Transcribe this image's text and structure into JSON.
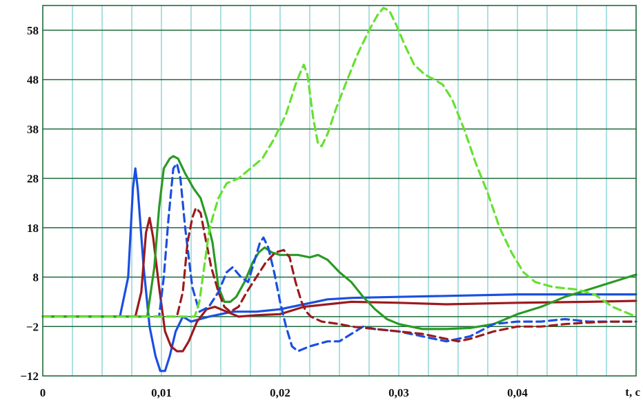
{
  "chart_data": {
    "type": "line",
    "title": "",
    "xlabel": "t, c",
    "xlim": [
      0,
      0.05
    ],
    "ylim": [
      -12,
      63
    ],
    "x_ticks": [
      {
        "v": 0,
        "label": "0"
      },
      {
        "v": 0.01,
        "label": "0,01"
      },
      {
        "v": 0.02,
        "label": "0,02"
      },
      {
        "v": 0.03,
        "label": "0,03"
      },
      {
        "v": 0.04,
        "label": "0,04"
      }
    ],
    "y_ticks": [
      {
        "v": -12,
        "label": "−12"
      },
      {
        "v": -2,
        "label": "−2"
      },
      {
        "v": 8,
        "label": "8"
      },
      {
        "v": 18,
        "label": "18"
      },
      {
        "v": 28,
        "label": "28"
      },
      {
        "v": 38,
        "label": "38"
      },
      {
        "v": 48,
        "label": "48"
      },
      {
        "v": 58,
        "label": "58"
      }
    ],
    "grid": true,
    "series": [
      {
        "color": "#1a4fe0",
        "dash": false,
        "points": [
          [
            0,
            0
          ],
          [
            0.0065,
            0
          ],
          [
            0.0072,
            8
          ],
          [
            0.0076,
            26
          ],
          [
            0.0078,
            30
          ],
          [
            0.008,
            26
          ],
          [
            0.0085,
            10
          ],
          [
            0.009,
            -2
          ],
          [
            0.0095,
            -8
          ],
          [
            0.0099,
            -11
          ],
          [
            0.0103,
            -11
          ],
          [
            0.0107,
            -8
          ],
          [
            0.0112,
            -3
          ],
          [
            0.0118,
            0
          ],
          [
            0.0125,
            -1
          ],
          [
            0.014,
            0
          ],
          [
            0.016,
            1
          ],
          [
            0.018,
            1
          ],
          [
            0.02,
            1.5
          ],
          [
            0.022,
            2.5
          ],
          [
            0.024,
            3.5
          ],
          [
            0.026,
            3.8
          ],
          [
            0.03,
            4
          ],
          [
            0.034,
            4.2
          ],
          [
            0.04,
            4.5
          ],
          [
            0.046,
            4.5
          ],
          [
            0.05,
            4.5
          ]
        ]
      },
      {
        "color": "#9b1a1e",
        "dash": false,
        "points": [
          [
            0,
            0
          ],
          [
            0.0078,
            0
          ],
          [
            0.0083,
            5
          ],
          [
            0.0087,
            17
          ],
          [
            0.009,
            20
          ],
          [
            0.0093,
            16
          ],
          [
            0.0098,
            6
          ],
          [
            0.0103,
            -3
          ],
          [
            0.0108,
            -6
          ],
          [
            0.0113,
            -7
          ],
          [
            0.0118,
            -7
          ],
          [
            0.0123,
            -5
          ],
          [
            0.013,
            -1
          ],
          [
            0.0138,
            1.5
          ],
          [
            0.0145,
            2
          ],
          [
            0.0155,
            1
          ],
          [
            0.0165,
            0
          ],
          [
            0.018,
            0.3
          ],
          [
            0.02,
            0.5
          ],
          [
            0.022,
            2
          ],
          [
            0.024,
            2.5
          ],
          [
            0.026,
            3
          ],
          [
            0.03,
            2.8
          ],
          [
            0.034,
            2.5
          ],
          [
            0.04,
            2.8
          ],
          [
            0.046,
            3
          ],
          [
            0.05,
            3.2
          ]
        ]
      },
      {
        "color": "#2a9a25",
        "dash": false,
        "points": [
          [
            0,
            0
          ],
          [
            0.0088,
            0
          ],
          [
            0.0094,
            10
          ],
          [
            0.0098,
            22
          ],
          [
            0.0102,
            30
          ],
          [
            0.0107,
            32
          ],
          [
            0.011,
            32.5
          ],
          [
            0.0114,
            32
          ],
          [
            0.012,
            29
          ],
          [
            0.0127,
            26
          ],
          [
            0.0133,
            24
          ],
          [
            0.0138,
            20
          ],
          [
            0.0143,
            15
          ],
          [
            0.0148,
            6
          ],
          [
            0.0153,
            3
          ],
          [
            0.0158,
            3
          ],
          [
            0.0163,
            4
          ],
          [
            0.017,
            7
          ],
          [
            0.0177,
            11
          ],
          [
            0.0182,
            13
          ],
          [
            0.0187,
            14
          ],
          [
            0.0193,
            13
          ],
          [
            0.02,
            12.5
          ],
          [
            0.0215,
            12.5
          ],
          [
            0.0225,
            12
          ],
          [
            0.0232,
            12.5
          ],
          [
            0.024,
            11.5
          ],
          [
            0.025,
            9
          ],
          [
            0.026,
            7
          ],
          [
            0.027,
            4
          ],
          [
            0.028,
            1.5
          ],
          [
            0.029,
            -0.5
          ],
          [
            0.03,
            -1.5
          ],
          [
            0.031,
            -2
          ],
          [
            0.032,
            -2.5
          ],
          [
            0.034,
            -2.5
          ],
          [
            0.036,
            -2.3
          ],
          [
            0.038,
            -1.5
          ],
          [
            0.04,
            0.5
          ],
          [
            0.042,
            2
          ],
          [
            0.044,
            4
          ],
          [
            0.046,
            5.5
          ],
          [
            0.048,
            7
          ],
          [
            0.05,
            8.5
          ]
        ]
      },
      {
        "color": "#1a4fe0",
        "dash": true,
        "points": [
          [
            0,
            0
          ],
          [
            0.0098,
            0
          ],
          [
            0.0102,
            8
          ],
          [
            0.0106,
            20
          ],
          [
            0.011,
            30
          ],
          [
            0.0113,
            31
          ],
          [
            0.0116,
            28
          ],
          [
            0.012,
            18
          ],
          [
            0.0126,
            6
          ],
          [
            0.0132,
            1
          ],
          [
            0.014,
            2
          ],
          [
            0.0148,
            5
          ],
          [
            0.0155,
            9
          ],
          [
            0.016,
            10
          ],
          [
            0.0167,
            8
          ],
          [
            0.0173,
            7
          ],
          [
            0.0178,
            11
          ],
          [
            0.0183,
            15
          ],
          [
            0.0186,
            16
          ],
          [
            0.019,
            14
          ],
          [
            0.0195,
            9
          ],
          [
            0.02,
            3
          ],
          [
            0.0205,
            -2
          ],
          [
            0.021,
            -6
          ],
          [
            0.0215,
            -7
          ],
          [
            0.0225,
            -6
          ],
          [
            0.024,
            -5
          ],
          [
            0.025,
            -5
          ],
          [
            0.026,
            -3.5
          ],
          [
            0.027,
            -2
          ],
          [
            0.028,
            -2.5
          ],
          [
            0.03,
            -3
          ],
          [
            0.032,
            -4
          ],
          [
            0.034,
            -5
          ],
          [
            0.036,
            -4
          ],
          [
            0.038,
            -1.5
          ],
          [
            0.04,
            -1
          ],
          [
            0.042,
            -1
          ],
          [
            0.044,
            -0.5
          ],
          [
            0.046,
            -1
          ],
          [
            0.048,
            -1
          ],
          [
            0.05,
            -1
          ]
        ]
      },
      {
        "color": "#9b1a1e",
        "dash": true,
        "points": [
          [
            0,
            0
          ],
          [
            0.0113,
            0
          ],
          [
            0.0118,
            5
          ],
          [
            0.0122,
            15
          ],
          [
            0.0126,
            20
          ],
          [
            0.0129,
            22
          ],
          [
            0.0133,
            21
          ],
          [
            0.0137,
            16
          ],
          [
            0.0142,
            10
          ],
          [
            0.0148,
            5
          ],
          [
            0.0153,
            2
          ],
          [
            0.0158,
            1
          ],
          [
            0.0165,
            2
          ],
          [
            0.0172,
            5
          ],
          [
            0.018,
            8
          ],
          [
            0.0188,
            11
          ],
          [
            0.0196,
            13
          ],
          [
            0.0203,
            13.5
          ],
          [
            0.0208,
            12
          ],
          [
            0.0213,
            7
          ],
          [
            0.0218,
            3
          ],
          [
            0.0222,
            1
          ],
          [
            0.0226,
            0
          ],
          [
            0.0235,
            -1
          ],
          [
            0.025,
            -1.5
          ],
          [
            0.026,
            -2
          ],
          [
            0.028,
            -2.5
          ],
          [
            0.03,
            -3
          ],
          [
            0.032,
            -3.5
          ],
          [
            0.034,
            -4.5
          ],
          [
            0.035,
            -5
          ],
          [
            0.036,
            -4.5
          ],
          [
            0.038,
            -3
          ],
          [
            0.04,
            -2
          ],
          [
            0.042,
            -2
          ],
          [
            0.044,
            -1.5
          ],
          [
            0.046,
            -1.2
          ],
          [
            0.048,
            -1
          ],
          [
            0.05,
            -1
          ]
        ]
      },
      {
        "color": "#66e030",
        "dash": true,
        "points": [
          [
            0,
            0
          ],
          [
            0.0128,
            0
          ],
          [
            0.0132,
            3
          ],
          [
            0.0136,
            10
          ],
          [
            0.014,
            17
          ],
          [
            0.0143,
            20
          ],
          [
            0.0148,
            24
          ],
          [
            0.0155,
            27
          ],
          [
            0.0165,
            28
          ],
          [
            0.0175,
            30
          ],
          [
            0.0185,
            32
          ],
          [
            0.0195,
            36
          ],
          [
            0.0205,
            41
          ],
          [
            0.0213,
            47
          ],
          [
            0.0218,
            50
          ],
          [
            0.022,
            51
          ],
          [
            0.0223,
            49
          ],
          [
            0.0228,
            40
          ],
          [
            0.0232,
            35
          ],
          [
            0.0235,
            34.5
          ],
          [
            0.024,
            37
          ],
          [
            0.0247,
            42
          ],
          [
            0.0255,
            47
          ],
          [
            0.0265,
            53
          ],
          [
            0.0275,
            58
          ],
          [
            0.0282,
            61
          ],
          [
            0.0287,
            62.5
          ],
          [
            0.0292,
            62
          ],
          [
            0.0298,
            59
          ],
          [
            0.0305,
            55
          ],
          [
            0.0313,
            51
          ],
          [
            0.0322,
            49
          ],
          [
            0.033,
            48
          ],
          [
            0.0337,
            47
          ],
          [
            0.0345,
            44
          ],
          [
            0.0355,
            38
          ],
          [
            0.0365,
            31
          ],
          [
            0.0375,
            25
          ],
          [
            0.0385,
            18
          ],
          [
            0.0395,
            13
          ],
          [
            0.0405,
            9
          ],
          [
            0.0415,
            7
          ],
          [
            0.043,
            6
          ],
          [
            0.045,
            5.5
          ],
          [
            0.0465,
            4.5
          ],
          [
            0.048,
            2
          ],
          [
            0.049,
            1
          ],
          [
            0.05,
            0
          ]
        ]
      }
    ]
  }
}
